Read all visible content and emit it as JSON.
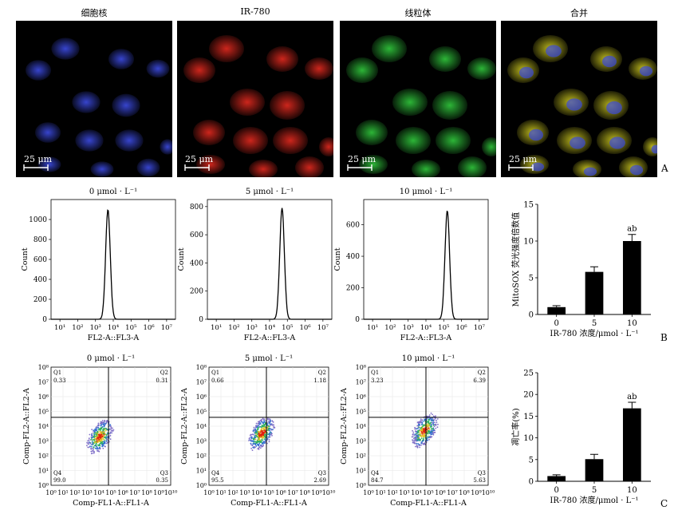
{
  "row_a": {
    "titles": [
      "细胞核",
      "IR-780",
      "线粒体",
      "合并"
    ],
    "scale_label": "25 μm",
    "panel_letter": "A",
    "channel_colors": [
      "#3a48d8",
      "#d8281e",
      "#2fbf3a",
      "#c8c420"
    ]
  },
  "row_b": {
    "titles": [
      "0 μmol · L⁻¹",
      "5 μmol · L⁻¹",
      "10 μmol · L⁻¹"
    ],
    "xlabel": "FL2-A::FL3-A",
    "ylabel": "Count",
    "xticks": [
      "10¹",
      "10²",
      "10³",
      "10⁴",
      "10⁵",
      "10⁶",
      "10⁷"
    ],
    "yticks": [
      [
        "0",
        "200",
        "400",
        "600",
        "800",
        "1000"
      ],
      [
        "0",
        "200",
        "400",
        "600",
        "800"
      ],
      [
        "0",
        "200",
        "400",
        "600"
      ]
    ],
    "panel_letter": "B"
  },
  "row_c": {
    "titles": [
      "0 μmol · L⁻¹",
      "5 μmol · L⁻¹",
      "10 μmol · L⁻¹"
    ],
    "xlabel": "Comp-FL1-A::FL1-A",
    "ylabel": "Comp-FL2-A::FL2-A",
    "xticks": [
      "10⁰",
      "10¹",
      "10²",
      "10³",
      "10⁴",
      "10⁵",
      "10⁶",
      "10⁷",
      "10⁸",
      "10⁹",
      "10¹⁰"
    ],
    "yticks": [
      "10⁰",
      "10¹",
      "10²",
      "10³",
      "10⁴",
      "10⁵",
      "10⁶",
      "10⁷",
      "10⁸"
    ],
    "quadrants": [
      {
        "Q1": "0.33",
        "Q2": "0.31",
        "Q3": "0.35",
        "Q4": "99.0"
      },
      {
        "Q1": "0.66",
        "Q2": "1.18",
        "Q3": "2.69",
        "Q4": "95.5"
      },
      {
        "Q1": "3.23",
        "Q2": "6.39",
        "Q3": "5.63",
        "Q4": "84.7"
      }
    ],
    "quadrant_names": [
      "Q1",
      "Q2",
      "Q3",
      "Q4"
    ],
    "panel_letter": "C"
  },
  "chart_data": [
    {
      "type": "bar",
      "categories": [
        "0",
        "5",
        "10"
      ],
      "values": [
        1.0,
        5.8,
        10.0
      ],
      "errors": [
        0.2,
        0.7,
        0.9
      ],
      "annotations": [
        "",
        "",
        "ab"
      ],
      "xlabel": "IR-780 浓度/μmol · L⁻¹",
      "ylabel": "MitoSOX 荧光强度倍数值",
      "ylim": [
        0,
        15
      ],
      "yticks": [
        "0",
        "5",
        "10",
        "15"
      ]
    },
    {
      "type": "bar",
      "categories": [
        "0",
        "5",
        "10"
      ],
      "values": [
        1.2,
        5.1,
        16.8
      ],
      "errors": [
        0.3,
        1.1,
        1.4
      ],
      "annotations": [
        "",
        "",
        "ab"
      ],
      "xlabel": "IR-780 浓度/μmol · L⁻¹",
      "ylabel": "凋亡率(%)",
      "ylim": [
        0,
        25
      ],
      "yticks": [
        "0",
        "5",
        "10",
        "15",
        "20",
        "25"
      ]
    },
    {
      "type": "line",
      "title": "0 μmol · L⁻¹",
      "xlabel": "FL2-A::FL3-A",
      "ylabel": "Count",
      "x": [
        "10¹",
        "10²",
        "10³",
        "10⁴",
        "10⁵",
        "10⁶",
        "10⁷"
      ],
      "peak_log10": 3.7,
      "peak_count": 1100,
      "ylim": [
        0,
        1200
      ]
    },
    {
      "type": "line",
      "title": "5 μmol · L⁻¹",
      "xlabel": "FL2-A::FL3-A",
      "ylabel": "Count",
      "x": [
        "10¹",
        "10²",
        "10³",
        "10⁴",
        "10⁵",
        "10⁶",
        "10⁷"
      ],
      "peak_log10": 4.7,
      "peak_count": 790,
      "ylim": [
        0,
        850
      ]
    },
    {
      "type": "line",
      "title": "10 μmol · L⁻¹",
      "xlabel": "FL2-A::FL3-A",
      "ylabel": "Count",
      "x": [
        "10¹",
        "10²",
        "10³",
        "10⁴",
        "10⁵",
        "10⁶",
        "10⁷"
      ],
      "peak_log10": 5.2,
      "peak_count": 690,
      "ylim": [
        0,
        760
      ]
    }
  ]
}
